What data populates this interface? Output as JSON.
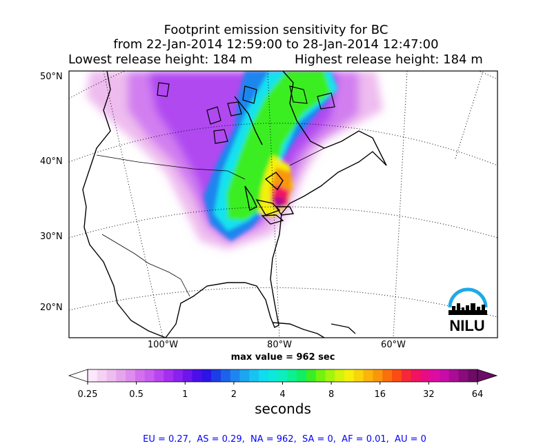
{
  "title": {
    "line1": "Footprint emission sensitivity for BC",
    "line2": "from 22-Jan-2014 12:59:00 to 28-Jan-2014 12:47:00",
    "lowest": "Lowest release height: 184 m",
    "highest": "Highest release height: 184 m"
  },
  "map": {
    "lat_labels": [
      "50°N",
      "40°N",
      "30°N",
      "20°N"
    ],
    "lon_labels": [
      "100°W",
      "80°W",
      "60°W"
    ],
    "logo_text": "NILU"
  },
  "max_value": "max value = 962 sec",
  "colorbar": {
    "tick_labels": [
      "0.25",
      "0.5",
      "1",
      "2",
      "4",
      "8",
      "16",
      "32",
      "64"
    ],
    "label": "seconds",
    "colors": [
      "#fbe8fb",
      "#f4d2f4",
      "#eebcee",
      "#e5a5ee",
      "#de8ced",
      "#d270ee",
      "#c75ef0",
      "#b945f0",
      "#a52ff0",
      "#8a22ee",
      "#6d16ec",
      "#4c0ee9",
      "#2c14e6",
      "#1c3ee6",
      "#1c62ea",
      "#1c86ee",
      "#1ca5f0",
      "#18c3f2",
      "#10dcf0",
      "#0ce8dc",
      "#0cefbc",
      "#0cf092",
      "#12ee62",
      "#3aee24",
      "#72f20e",
      "#a4f40c",
      "#d2f40c",
      "#f4f00c",
      "#f8d40c",
      "#fab40c",
      "#fa960c",
      "#fa700c",
      "#fa4c14",
      "#f62838",
      "#f01460",
      "#e80c84",
      "#dc0ca2",
      "#c80ca8",
      "#aa0c96",
      "#8a0c7c",
      "#6c0c64"
    ]
  },
  "regions_text": "EU = 0.27,  AS = 0.29,  NA = 962,  SA = 0,  AF = 0.01,  AU = 0"
}
